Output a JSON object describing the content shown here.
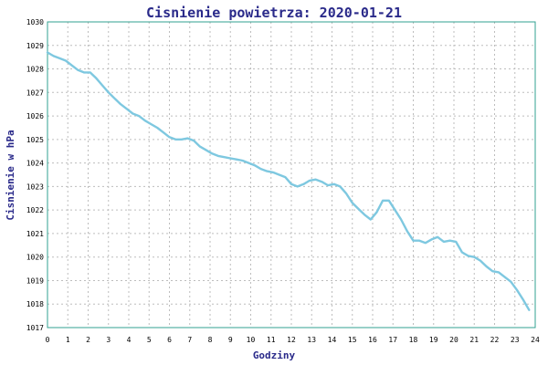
{
  "chart_data": {
    "type": "line",
    "title": "Cisnienie powietrza: 2020-01-21",
    "xlabel": "Godziny",
    "ylabel": "Cisnienie w hPa",
    "xlim": [
      0,
      24
    ],
    "ylim": [
      1017,
      1030
    ],
    "xticks": [
      "0",
      "1",
      "2",
      "3",
      "4",
      "5",
      "6",
      "7",
      "8",
      "9",
      "10",
      "11",
      "12",
      "13",
      "14",
      "15",
      "16",
      "17",
      "18",
      "19",
      "20",
      "21",
      "22",
      "23",
      "24"
    ],
    "yticks": [
      "1017",
      "1018",
      "1019",
      "1020",
      "1021",
      "1022",
      "1023",
      "1024",
      "1025",
      "1026",
      "1027",
      "1028",
      "1029",
      "1030"
    ],
    "grid": true,
    "colors": {
      "line": "#7ec8e0",
      "axis": "#30a090",
      "title": "#2a2a8a",
      "grid": "#bdbdbd"
    },
    "series": [
      {
        "x": [
          0,
          0.3,
          0.6,
          0.9,
          1.2,
          1.5,
          1.8,
          2.1,
          2.4,
          2.7,
          3.0,
          3.3,
          3.6,
          3.9,
          4.2,
          4.5,
          4.8,
          5.1,
          5.4,
          5.7,
          6.0,
          6.3,
          6.6,
          6.9,
          7.2,
          7.5,
          7.8,
          8.1,
          8.4,
          8.7,
          9.0,
          9.3,
          9.6,
          9.9,
          10.2,
          10.5,
          10.8,
          11.1,
          11.4,
          11.7,
          12.0,
          12.3,
          12.6,
          12.9,
          13.2,
          13.5,
          13.8,
          14.1,
          14.4,
          14.7,
          15.0,
          15.3,
          15.6,
          15.9,
          16.2,
          16.5,
          16.8,
          17.1,
          17.4,
          17.7,
          18.0,
          18.3,
          18.6,
          18.9,
          19.2,
          19.5,
          19.8,
          20.1,
          20.4,
          20.7,
          21.0,
          21.3,
          21.6,
          21.9,
          22.2,
          22.5,
          22.8,
          23.1,
          23.4,
          23.7
        ],
        "values": [
          1028.7,
          1028.55,
          1028.45,
          1028.35,
          1028.15,
          1027.95,
          1027.85,
          1027.85,
          1027.6,
          1027.3,
          1027.0,
          1026.75,
          1026.5,
          1026.3,
          1026.1,
          1026.0,
          1025.8,
          1025.65,
          1025.5,
          1025.3,
          1025.1,
          1025.0,
          1025.0,
          1025.05,
          1024.95,
          1024.7,
          1024.55,
          1024.4,
          1024.3,
          1024.25,
          1024.2,
          1024.15,
          1024.1,
          1024.0,
          1023.9,
          1023.75,
          1023.65,
          1023.6,
          1023.5,
          1023.4,
          1023.1,
          1023.0,
          1023.1,
          1023.25,
          1023.3,
          1023.2,
          1023.05,
          1023.1,
          1023.0,
          1022.7,
          1022.3,
          1022.05,
          1021.8,
          1021.6,
          1021.9,
          1022.4,
          1022.4,
          1022.0,
          1021.6,
          1021.1,
          1020.7,
          1020.7,
          1020.6,
          1020.75,
          1020.85,
          1020.65,
          1020.7,
          1020.65,
          1020.2,
          1020.05,
          1020.0,
          1019.85,
          1019.6,
          1019.4,
          1019.35,
          1019.15,
          1018.95,
          1018.6,
          1018.2,
          1017.75
        ]
      }
    ]
  }
}
